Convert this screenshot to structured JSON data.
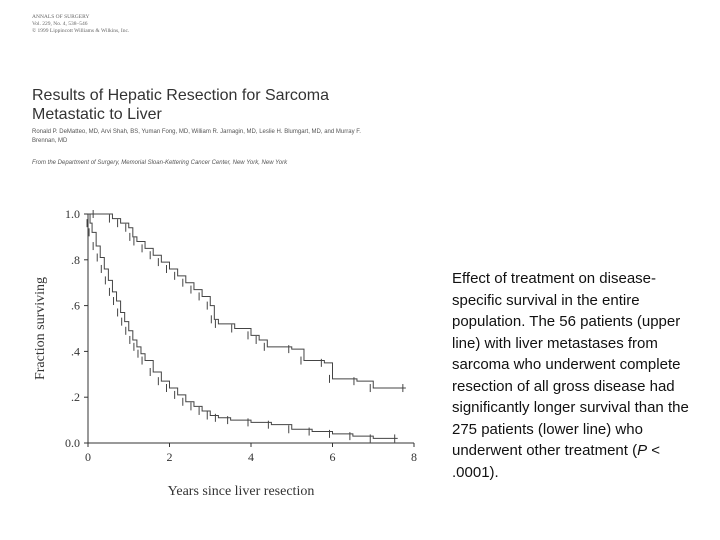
{
  "journal": {
    "line1": "ANNALS OF SURGERY",
    "line2": "Vol. 229, No. 4, 538–546",
    "line3": "© 1999 Lippincott Williams & Wilkins, Inc."
  },
  "paper": {
    "title": "Results of Hepatic Resection for Sarcoma Metastatic to Liver",
    "authors": "Ronald P. DeMatteo, MD, Arvi Shah, BS, Yuman Fong, MD, William R. Jarnagin, MD, Leslie H. Blumgart, MD, and Murray F. Brennan, MD",
    "affiliation": "From the Department of Surgery, Memorial Sloan-Kettering Cancer Center, New York, New York"
  },
  "caption": {
    "text_before_p": "Effect of treatment on disease-specific survival in the entire population. The 56 patients (upper line) with liver metastases from sarcoma who underwent complete resection of all gross disease had significantly longer survival than the 275 patients (lower line) who underwent other treatment (",
    "p_symbol": "P",
    "text_after_p": " < .0001)."
  },
  "chart_data": {
    "type": "line",
    "xlabel": "Years since liver resection",
    "ylabel": "Fraction surviving",
    "xlim": [
      0,
      8
    ],
    "ylim": [
      0,
      1
    ],
    "xticks": [
      "0",
      "2",
      "4",
      "6",
      "8"
    ],
    "yticks": [
      "0.0",
      ".2",
      ".4",
      ".6",
      ".8",
      "1.0"
    ],
    "grid": false,
    "series": [
      {
        "x": [
          0,
          0.2,
          0.6,
          0.8,
          1.0,
          1.1,
          1.2,
          1.4,
          1.6,
          1.8,
          2.0,
          2.2,
          2.4,
          2.6,
          2.8,
          3.0,
          3.1,
          3.2,
          3.6,
          4.0,
          4.2,
          4.4,
          5.0,
          5.3,
          5.8,
          6.0,
          6.6,
          7.0,
          7.8
        ],
        "y": [
          1.0,
          1.0,
          0.98,
          0.96,
          0.94,
          0.9,
          0.88,
          0.85,
          0.82,
          0.79,
          0.76,
          0.73,
          0.7,
          0.67,
          0.64,
          0.6,
          0.54,
          0.52,
          0.5,
          0.47,
          0.45,
          0.42,
          0.41,
          0.36,
          0.35,
          0.28,
          0.27,
          0.24,
          0.24
        ]
      },
      {
        "x": [
          0,
          0.05,
          0.1,
          0.2,
          0.3,
          0.4,
          0.5,
          0.6,
          0.7,
          0.8,
          0.9,
          1.0,
          1.1,
          1.2,
          1.3,
          1.4,
          1.6,
          1.8,
          2.0,
          2.2,
          2.4,
          2.6,
          2.8,
          3.0,
          3.2,
          3.5,
          4.0,
          4.5,
          5.0,
          5.5,
          6.0,
          6.5,
          7.0,
          7.6
        ],
        "y": [
          1.0,
          0.96,
          0.92,
          0.86,
          0.81,
          0.76,
          0.71,
          0.66,
          0.62,
          0.57,
          0.53,
          0.49,
          0.45,
          0.42,
          0.39,
          0.36,
          0.31,
          0.27,
          0.24,
          0.21,
          0.18,
          0.16,
          0.14,
          0.12,
          0.11,
          0.1,
          0.09,
          0.08,
          0.06,
          0.05,
          0.04,
          0.03,
          0.02,
          0.02
        ]
      }
    ]
  }
}
